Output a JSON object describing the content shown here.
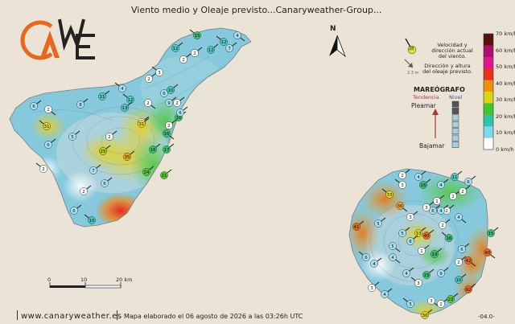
{
  "header": {
    "title": "Viento medio y Oleaje previsto",
    "group": "...Canaryweather-Group..."
  },
  "logo": {
    "text": "CAWE"
  },
  "north": {
    "label": "N"
  },
  "legend": {
    "wind_text": "Velocidad y dirección actual del viento.",
    "wind_sample": "28",
    "wave_text": "Dirección y altura del oleaje previsto.",
    "wave_sample": "2.3 m",
    "mareografo_title": "MAREÓGRAFO",
    "tendencia": "Tendencia",
    "nivel": "Nivel",
    "pleamar": "Pleamar",
    "bajamar": "Bajamar"
  },
  "colorbar": {
    "unit": "km/h",
    "labels": [
      "70 km/h",
      "60 km/h",
      "50 km/h",
      "40 km/h",
      "30 km/h",
      "20 km/h",
      "10 km/h",
      "0 km/h"
    ],
    "colors": [
      "#5a1010",
      "#a8106e",
      "#e0148c",
      "#e8301a",
      "#ef8f12",
      "#d8d70f",
      "#3fc82a",
      "#2ec4ad",
      "#7dd8ee",
      "#ffffff"
    ]
  },
  "scale": {
    "labels": [
      "0",
      "10",
      "20 km"
    ]
  },
  "footer": {
    "site": "www.canaryweather.es",
    "map_info": "Mapa elaborado el 06 agosto de 2026 a las 03:26h UTC",
    "code": "-04.0-"
  },
  "chart_data": {
    "type": "map",
    "islands": [
      "Tenerife",
      "Gran Canaria"
    ],
    "tenerife_wind_kmh": [
      15,
      12,
      12,
      2,
      12,
      7,
      4,
      2,
      3,
      2,
      4,
      11,
      6,
      2,
      6,
      12,
      10,
      2,
      8,
      13,
      16,
      16,
      6,
      31,
      6,
      2,
      5,
      2,
      31,
      9,
      2,
      2,
      17,
      35,
      25,
      24,
      21,
      7,
      6,
      16,
      2,
      2,
      6,
      10
    ],
    "gran_canaria_wind_kmh": [
      2,
      4,
      4,
      11,
      6,
      3,
      33,
      16,
      36,
      1,
      2,
      2,
      2,
      3,
      6,
      3,
      4,
      4,
      41,
      5,
      33,
      40,
      2,
      5,
      6,
      15,
      5,
      16,
      42,
      19,
      1,
      4,
      6,
      2,
      4,
      4,
      9,
      15,
      6,
      3,
      40,
      3,
      3,
      2,
      42,
      10,
      22,
      30,
      5,
      4
    ]
  },
  "tide": {
    "level_boxes": 7,
    "filled_boxes": 2
  }
}
